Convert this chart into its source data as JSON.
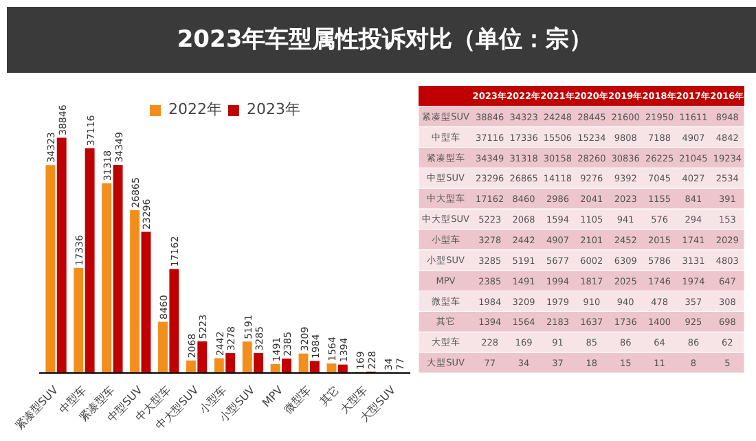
{
  "chart_data": [
    {
      "type": "bar",
      "title": "2023年车型属性投诉对比（单位：宗）",
      "categories": [
        "紧凑型SUV",
        "中型车",
        "紧凑型车",
        "中型SUV",
        "中大型车",
        "中大型SUV",
        "小型车",
        "小型SUV",
        "MPV",
        "微型车",
        "其它",
        "大型车",
        "大型SUV"
      ],
      "series": [
        {
          "name": "2022年",
          "color": "#f28e1c",
          "values": [
            34323,
            17336,
            31318,
            26865,
            8460,
            2068,
            2442,
            5191,
            1491,
            3209,
            1564,
            169,
            34
          ]
        },
        {
          "name": "2023年",
          "color": "#c00000",
          "values": [
            38846,
            37116,
            34349,
            23296,
            17162,
            5223,
            3278,
            3285,
            2385,
            1984,
            1394,
            228,
            77
          ]
        }
      ],
      "data_labels": true,
      "legend": "top",
      "grid": false
    },
    {
      "type": "heatmap",
      "categories": [
        "2023年",
        "2022年",
        "2021年",
        "2020年",
        "2019年",
        "2018年",
        "2017年",
        "2016年"
      ],
      "y_categories": [
        "紧凑型SUV",
        "中型车",
        "紧凑型车",
        "中型SUV",
        "中大型车",
        "中大型SUV",
        "小型车",
        "小型SUV",
        "MPV",
        "微型车",
        "其它",
        "大型车",
        "大型SUV"
      ],
      "cells": [
        [
          38846,
          34323,
          24248,
          28445,
          21600,
          21950,
          11611,
          8948
        ],
        [
          37116,
          17336,
          15506,
          15234,
          9808,
          7188,
          4907,
          4842
        ],
        [
          34349,
          31318,
          30158,
          28260,
          30836,
          26225,
          21045,
          19234
        ],
        [
          23296,
          26865,
          14118,
          9276,
          9392,
          7045,
          4027,
          2534
        ],
        [
          17162,
          8460,
          2986,
          2041,
          2023,
          1155,
          841,
          391
        ],
        [
          5223,
          2068,
          1594,
          1105,
          941,
          576,
          294,
          153
        ],
        [
          3278,
          2442,
          4907,
          2101,
          2452,
          2015,
          1741,
          2029
        ],
        [
          3285,
          5191,
          5677,
          6002,
          6309,
          5786,
          3131,
          4803
        ],
        [
          2385,
          1491,
          1994,
          1817,
          2025,
          1746,
          1974,
          647
        ],
        [
          1984,
          3209,
          1979,
          910,
          940,
          478,
          357,
          308
        ],
        [
          1394,
          1564,
          2183,
          1637,
          1736,
          1400,
          925,
          698
        ],
        [
          228,
          169,
          91,
          85,
          86,
          64,
          86,
          62
        ],
        [
          77,
          34,
          37,
          18,
          15,
          11,
          8,
          5
        ]
      ],
      "data_labels": true
    }
  ]
}
